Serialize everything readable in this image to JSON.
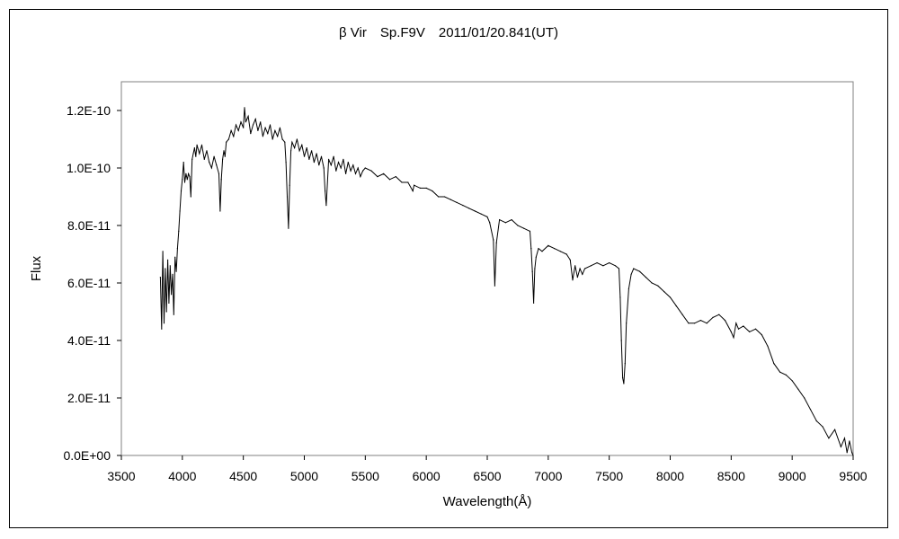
{
  "chart_data": {
    "type": "line",
    "title": "β Vir　Sp.F9V　2011/01/20.841(UT)",
    "xlabel": "Wavelength(Å)",
    "ylabel": "Flux",
    "xlim": [
      3500,
      9500
    ],
    "ylim": [
      0,
      1.3e-10
    ],
    "xticks": [
      3500,
      4000,
      4500,
      5000,
      5500,
      6000,
      6500,
      7000,
      7500,
      8000,
      8500,
      9000,
      9500
    ],
    "xtick_labels": [
      "3500",
      "4000",
      "4500",
      "5000",
      "5500",
      "6000",
      "6500",
      "7000",
      "7500",
      "8000",
      "8500",
      "9000",
      "9500"
    ],
    "yticks": [
      0,
      2e-11,
      4e-11,
      6e-11,
      8e-11,
      1e-10,
      1.2e-10
    ],
    "ytick_labels": [
      "0.0E+00",
      "2.0E-11",
      "4.0E-11",
      "6.0E-11",
      "8.0E-11",
      "1.0E-10",
      "1.2E-10"
    ],
    "grid": false,
    "legend": "none",
    "series": [
      {
        "color": "#000000",
        "x": [
          3820,
          3830,
          3840,
          3850,
          3860,
          3870,
          3880,
          3890,
          3900,
          3910,
          3920,
          3930,
          3940,
          3950,
          3960,
          3970,
          3980,
          3990,
          4000,
          4010,
          4020,
          4030,
          4040,
          4050,
          4060,
          4070,
          4080,
          4090,
          4100,
          4110,
          4120,
          4140,
          4160,
          4180,
          4200,
          4220,
          4240,
          4260,
          4280,
          4300,
          4310,
          4320,
          4330,
          4340,
          4350,
          4360,
          4380,
          4400,
          4420,
          4440,
          4460,
          4480,
          4500,
          4510,
          4520,
          4540,
          4560,
          4580,
          4600,
          4620,
          4640,
          4660,
          4680,
          4700,
          4720,
          4740,
          4760,
          4780,
          4800,
          4820,
          4840,
          4850,
          4860,
          4870,
          4880,
          4890,
          4900,
          4920,
          4940,
          4960,
          4980,
          5000,
          5020,
          5040,
          5060,
          5080,
          5100,
          5120,
          5140,
          5160,
          5170,
          5180,
          5200,
          5220,
          5240,
          5260,
          5280,
          5300,
          5320,
          5340,
          5360,
          5380,
          5400,
          5420,
          5440,
          5460,
          5480,
          5500,
          5550,
          5600,
          5650,
          5700,
          5750,
          5800,
          5850,
          5890,
          5900,
          5950,
          6000,
          6050,
          6100,
          6150,
          6200,
          6250,
          6300,
          6350,
          6400,
          6450,
          6500,
          6520,
          6550,
          6562,
          6575,
          6600,
          6650,
          6700,
          6750,
          6800,
          6850,
          6860,
          6870,
          6880,
          6890,
          6900,
          6920,
          6950,
          7000,
          7050,
          7100,
          7150,
          7180,
          7200,
          7220,
          7240,
          7260,
          7280,
          7300,
          7350,
          7400,
          7450,
          7500,
          7550,
          7580,
          7590,
          7600,
          7610,
          7620,
          7630,
          7640,
          7660,
          7680,
          7700,
          7750,
          7800,
          7850,
          7900,
          7950,
          8000,
          8050,
          8100,
          8150,
          8200,
          8250,
          8300,
          8350,
          8400,
          8450,
          8500,
          8520,
          8540,
          8560,
          8600,
          8650,
          8700,
          8750,
          8800,
          8850,
          8900,
          8950,
          9000,
          9050,
          9100,
          9150,
          9200,
          9250,
          9300,
          9350,
          9400,
          9430,
          9450,
          9470,
          9490,
          9500
        ],
        "y": [
          6.2e-11,
          4.4e-11,
          7.1e-11,
          4.6e-11,
          6.5e-11,
          5e-11,
          6.8e-11,
          5.3e-11,
          6.6e-11,
          5.6e-11,
          6.3e-11,
          4.9e-11,
          6.9e-11,
          6.4e-11,
          7.2e-11,
          7.8e-11,
          8.5e-11,
          9.2e-11,
          9.6e-11,
          1.02e-10,
          9.5e-11,
          9.8e-11,
          9.6e-11,
          9.8e-11,
          9.7e-11,
          9e-11,
          1.03e-10,
          1.05e-10,
          1.07e-10,
          1.04e-10,
          1.08e-10,
          1.05e-10,
          1.08e-10,
          1.03e-10,
          1.06e-10,
          1.02e-10,
          1e-10,
          1.04e-10,
          1.01e-10,
          9.8e-11,
          8.5e-11,
          9.6e-11,
          1.03e-10,
          1.06e-10,
          1.04e-10,
          1.09e-10,
          1.1e-10,
          1.13e-10,
          1.11e-10,
          1.15e-10,
          1.13e-10,
          1.16e-10,
          1.14e-10,
          1.21e-10,
          1.16e-10,
          1.18e-10,
          1.12e-10,
          1.15e-10,
          1.17e-10,
          1.13e-10,
          1.16e-10,
          1.11e-10,
          1.14e-10,
          1.12e-10,
          1.15e-10,
          1.1e-10,
          1.13e-10,
          1.11e-10,
          1.14e-10,
          1.1e-10,
          1.09e-10,
          1.02e-10,
          9e-11,
          7.9e-11,
          9.4e-11,
          1.06e-10,
          1.09e-10,
          1.07e-10,
          1.1e-10,
          1.06e-10,
          1.08e-10,
          1.04e-10,
          1.07e-10,
          1.03e-10,
          1.06e-10,
          1.02e-10,
          1.05e-10,
          1.01e-10,
          1.04e-10,
          1e-10,
          9.2e-11,
          8.7e-11,
          1.03e-10,
          1.01e-10,
          1.04e-10,
          9.9e-11,
          1.02e-10,
          1e-10,
          1.03e-10,
          9.8e-11,
          1.02e-10,
          9.9e-11,
          1.01e-10,
          9.8e-11,
          1e-10,
          9.7e-11,
          9.9e-11,
          1e-10,
          9.9e-11,
          9.7e-11,
          9.8e-11,
          9.6e-11,
          9.7e-11,
          9.5e-11,
          9.5e-11,
          9.2e-11,
          9.4e-11,
          9.3e-11,
          9.3e-11,
          9.2e-11,
          9e-11,
          9e-11,
          8.9e-11,
          8.8e-11,
          8.7e-11,
          8.6e-11,
          8.5e-11,
          8.4e-11,
          8.3e-11,
          8.1e-11,
          7.5e-11,
          5.9e-11,
          7.4e-11,
          8.2e-11,
          8.1e-11,
          8.2e-11,
          8e-11,
          7.9e-11,
          7.8e-11,
          7.2e-11,
          6.4e-11,
          5.3e-11,
          6.5e-11,
          6.9e-11,
          7.2e-11,
          7.1e-11,
          7.3e-11,
          7.2e-11,
          7.1e-11,
          7e-11,
          6.8e-11,
          6.1e-11,
          6.6e-11,
          6.2e-11,
          6.5e-11,
          6.3e-11,
          6.5e-11,
          6.6e-11,
          6.7e-11,
          6.6e-11,
          6.7e-11,
          6.6e-11,
          6.5e-11,
          5.5e-11,
          4e-11,
          2.7e-11,
          2.5e-11,
          3.2e-11,
          4.6e-11,
          5.8e-11,
          6.3e-11,
          6.5e-11,
          6.4e-11,
          6.2e-11,
          6e-11,
          5.9e-11,
          5.7e-11,
          5.5e-11,
          5.2e-11,
          4.9e-11,
          4.6e-11,
          4.6e-11,
          4.7e-11,
          4.6e-11,
          4.8e-11,
          4.9e-11,
          4.7e-11,
          4.3e-11,
          4.1e-11,
          4.6e-11,
          4.4e-11,
          4.5e-11,
          4.3e-11,
          4.4e-11,
          4.2e-11,
          3.8e-11,
          3.2e-11,
          2.9e-11,
          2.8e-11,
          2.6e-11,
          2.3e-11,
          2e-11,
          1.6e-11,
          1.2e-11,
          1e-11,
          6e-12,
          9e-12,
          3e-12,
          6e-12,
          1e-12,
          5e-12,
          1e-12,
          0.0
        ]
      }
    ]
  }
}
